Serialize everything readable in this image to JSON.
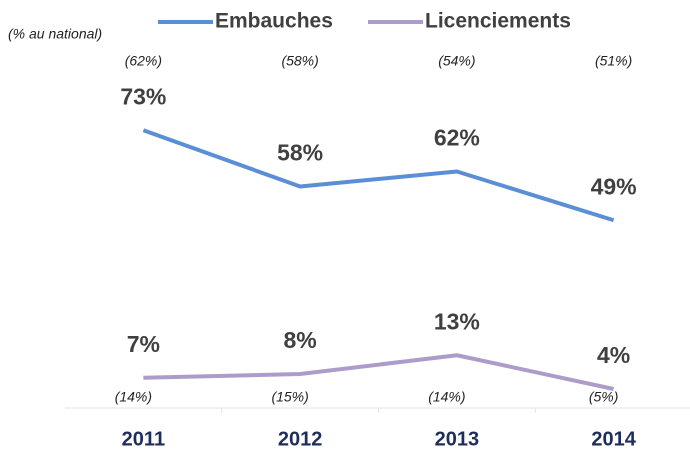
{
  "chart_data": {
    "type": "line",
    "note": "(% au national)",
    "categories": [
      "2011",
      "2012",
      "2013",
      "2014"
    ],
    "series": [
      {
        "name": "Embauches",
        "color": "#5a8fd6",
        "values": [
          73,
          58,
          62,
          49
        ],
        "value_labels": [
          "73%",
          "58%",
          "62%",
          "49%"
        ],
        "national_labels": [
          "(62%)",
          "(58%)",
          "(54%)",
          "(51%)"
        ]
      },
      {
        "name": "Licenciements",
        "color": "#ad9cc9",
        "values": [
          7,
          8,
          13,
          4
        ],
        "value_labels": [
          "7%",
          "8%",
          "13%",
          "4%"
        ],
        "national_labels": [
          "(14%)",
          "(15%)",
          "(14%)",
          "(5%)"
        ]
      }
    ],
    "ylim": [
      0,
      100
    ]
  }
}
